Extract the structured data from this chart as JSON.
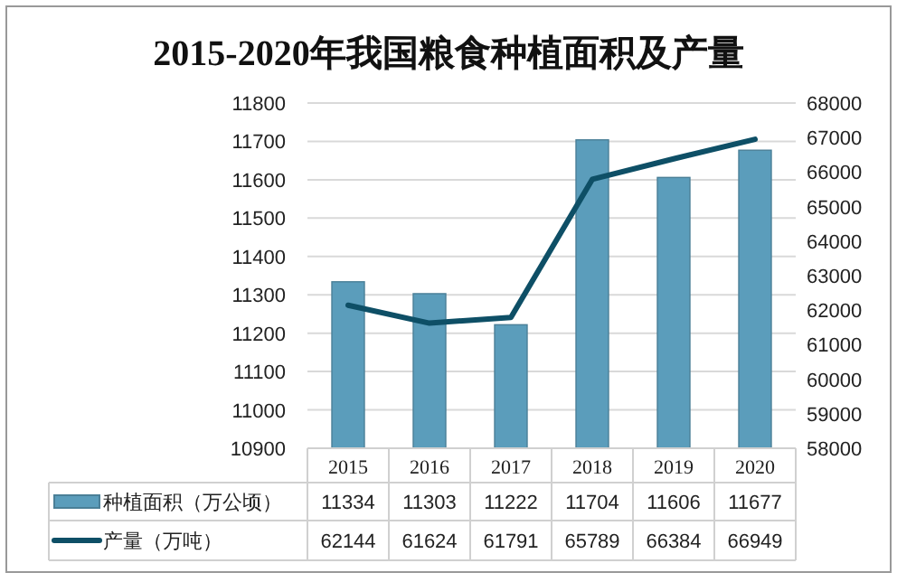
{
  "chart_data": {
    "type": "bar",
    "title": "2015-2020年我国粮食种植面积及产量",
    "categories": [
      "2015",
      "2016",
      "2017",
      "2018",
      "2019",
      "2020"
    ],
    "series": [
      {
        "name": "种植面积（万公顷）",
        "color": "#5b9dbb",
        "values": [
          11334,
          11303,
          11222,
          11704,
          11606,
          11677
        ]
      },
      {
        "name": "产量（万吨）",
        "type": "line",
        "axis": "y2",
        "color": "#0e4f66",
        "values": [
          62144,
          61624,
          61791,
          65789,
          66384,
          66949
        ]
      }
    ],
    "ylim": [
      10900,
      11800
    ],
    "yticks": [
      10900,
      11000,
      11100,
      11200,
      11300,
      11400,
      11500,
      11600,
      11700,
      11800
    ],
    "y2lim": [
      58000,
      68000
    ],
    "y2ticks": [
      58000,
      59000,
      60000,
      61000,
      62000,
      63000,
      64000,
      65000,
      66000,
      67000,
      68000
    ],
    "grid": "y",
    "data_labels": true,
    "legend": "bottom"
  }
}
